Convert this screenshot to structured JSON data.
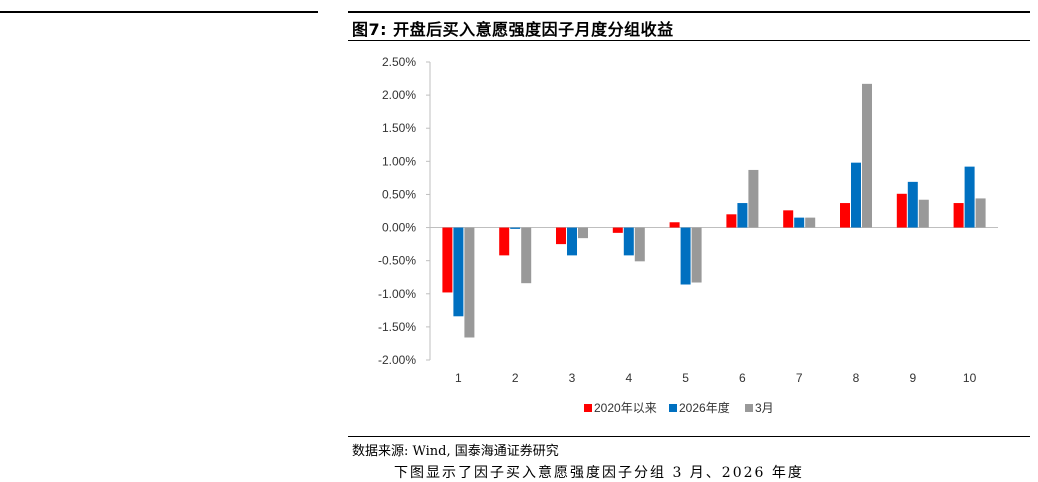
{
  "figure": {
    "title": "图7: 开盘后买入意愿强度因子月度分组收益",
    "source": "数据来源: Wind, 国泰海通证券研究",
    "cutoff_text": "下图显示了因子买入意愿强度因子分组 3 月、2026 年度"
  },
  "colors": {
    "series_2020": "#ff0000",
    "series_2026": "#0070c0",
    "series_march": "#999999",
    "axis": "#bfbfbf"
  },
  "chart_data": {
    "type": "bar",
    "categories": [
      "1",
      "2",
      "3",
      "4",
      "5",
      "6",
      "7",
      "8",
      "9",
      "10"
    ],
    "series": [
      {
        "name": "2020年以来",
        "values": [
          -0.98,
          -0.42,
          -0.25,
          -0.08,
          0.08,
          0.2,
          0.26,
          0.37,
          0.51,
          0.37
        ]
      },
      {
        "name": "2026年度",
        "values": [
          -1.34,
          -0.02,
          -0.42,
          -0.42,
          -0.86,
          0.37,
          0.15,
          0.98,
          0.69,
          0.92
        ]
      },
      {
        "name": "3月",
        "values": [
          -1.66,
          -0.84,
          -0.16,
          -0.51,
          -0.83,
          0.87,
          0.15,
          2.17,
          0.42,
          0.44
        ]
      }
    ],
    "ylim": [
      -2.0,
      2.5
    ],
    "yticks": [
      "2.50%",
      "2.00%",
      "1.50%",
      "1.00%",
      "0.50%",
      "0.00%",
      "-0.50%",
      "-1.00%",
      "-1.50%",
      "-2.00%"
    ],
    "ytick_values": [
      2.5,
      2.0,
      1.5,
      1.0,
      0.5,
      0.0,
      -0.5,
      -1.0,
      -1.5,
      -2.0
    ],
    "legend_position": "bottom"
  }
}
